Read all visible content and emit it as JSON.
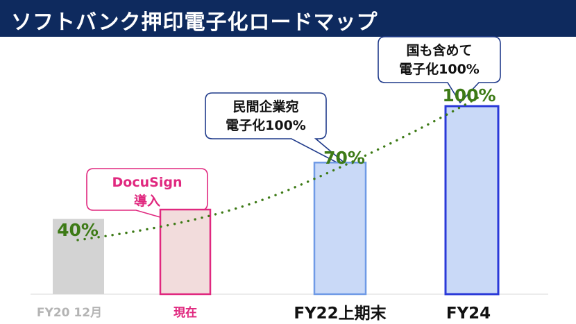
{
  "title": "ソフトバンク押印電子化ロードマップ",
  "colors": {
    "header_bg": "#0e2a5e",
    "gray_bar": "#d3d3d3",
    "gray_label": "#b4b4b4",
    "pink": "#e0287f",
    "pink_fill": "#f2dcdc",
    "blue_fill": "#c9d9f7",
    "blue_border_light": "#6f9ae6",
    "blue_border_dark": "#2a39d8",
    "green": "#3d7a16",
    "callout_border": "#1f3a8a"
  },
  "chart_data": {
    "type": "bar",
    "categories": [
      "FY20 12月",
      "現在",
      "FY22上期末",
      "FY24"
    ],
    "values": [
      40,
      45,
      70,
      100
    ],
    "data_labels": [
      "40%",
      "",
      "70%",
      "100%"
    ],
    "trend": "dotted-line",
    "ylim": [
      0,
      100
    ],
    "grid": false,
    "callouts": [
      {
        "category_index": 1,
        "lines": [
          "DocuSign",
          "導入"
        ],
        "style": "pink"
      },
      {
        "category_index": 2,
        "lines": [
          "民間企業宛",
          "電子化100%"
        ],
        "style": "blue"
      },
      {
        "category_index": 3,
        "lines": [
          "国も含めて",
          "電子化100%"
        ],
        "style": "blue"
      }
    ]
  }
}
